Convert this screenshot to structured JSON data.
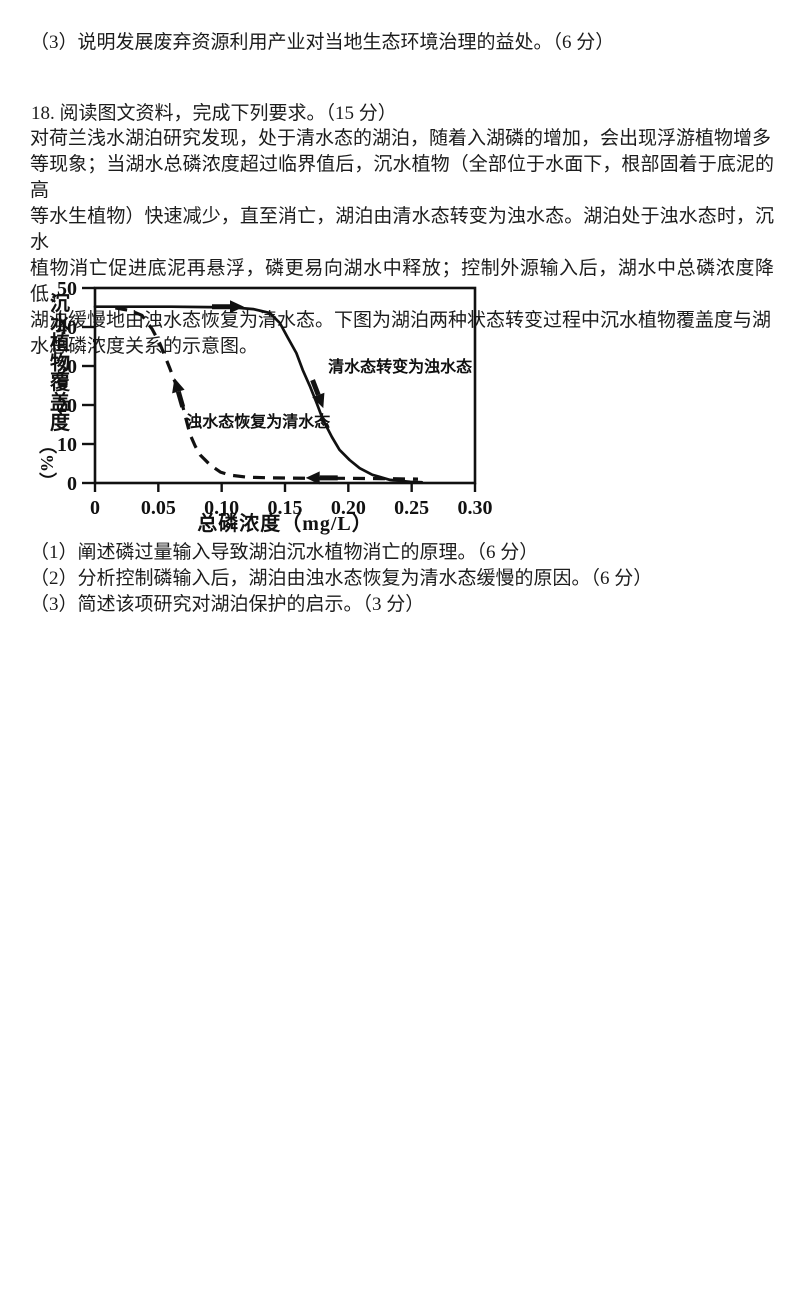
{
  "page": {
    "q17_part3": "（3）说明发展废弃资源利用产业对当地生态环境治理的益处。（6 分）",
    "q18_header": "18. 阅读图文资料，完成下列要求。（15 分）",
    "passage": "对荷兰浅水湖泊研究发现，处于清水态的湖泊，随着入湖磷的增加，会出现浮游植物增多\n等现象；当湖水总磷浓度超过临界值后，沉水植物（全部位于水面下，根部固着于底泥的高\n等水生植物）快速减少，直至消亡，湖泊由清水态转变为浊水态。湖泊处于浊水态时，沉水\n植物消亡促进底泥再悬浮，磷更易向湖水中释放；控制外源输入后，湖水中总磷浓度降低，\n湖泊缓慢地由浊水态恢复为清水态。下图为湖泊两种状态转变过程中沉水植物覆盖度与湖\n水总磷浓度关系的示意图。",
    "sub_questions": [
      "（1）阐述磷过量输入导致湖泊沉水植物消亡的原理。（6 分）",
      "（2）分析控制磷输入后，湖泊由浊水态恢复为清水态缓慢的原因。（6 分）",
      "（3）简述该项研究对湖泊保护的启示。（3 分）"
    ]
  },
  "chart_data": {
    "type": "line",
    "title": "",
    "xlabel": "总磷浓度（mg/L）",
    "ylabel": "沉水植物覆盖度（%）",
    "ylabel_stack": "沉水植物覆盖度",
    "ylabel_unit": "（%）",
    "xlim": [
      0,
      0.3
    ],
    "ylim": [
      0,
      50
    ],
    "xticks": [
      0,
      0.05,
      0.1,
      0.15,
      0.2,
      0.25,
      0.3
    ],
    "xtick_labels": [
      "0",
      "0.05",
      "0.10",
      "0.15",
      "0.20",
      "0.25",
      "0.30"
    ],
    "yticks": [
      0,
      10,
      20,
      30,
      40,
      50
    ],
    "ytick_labels": [
      "0",
      "10",
      "20",
      "30",
      "40",
      "50"
    ],
    "grid": false,
    "legend_position": "none",
    "series": [
      {
        "name": "清水态转变为浊水态",
        "style": "solid",
        "points": [
          [
            0,
            45.2
          ],
          [
            0.03,
            45.2
          ],
          [
            0.06,
            45.2
          ],
          [
            0.09,
            45.1
          ],
          [
            0.11,
            45.0
          ],
          [
            0.125,
            44.6
          ],
          [
            0.138,
            43.6
          ],
          [
            0.146,
            41.0
          ],
          [
            0.152,
            37.4
          ],
          [
            0.159,
            33.3
          ],
          [
            0.164,
            29.0
          ],
          [
            0.17,
            24.6
          ],
          [
            0.175,
            20.5
          ],
          [
            0.18,
            16.2
          ],
          [
            0.187,
            11.8
          ],
          [
            0.193,
            8.5
          ],
          [
            0.201,
            5.9
          ],
          [
            0.209,
            3.8
          ],
          [
            0.219,
            2.1
          ],
          [
            0.233,
            0.8
          ],
          [
            0.249,
            0.3
          ],
          [
            0.258,
            0.2
          ]
        ]
      },
      {
        "name": "浊水态恢复为清水态",
        "style": "dashed",
        "points": [
          [
            0.016,
            44.9
          ],
          [
            0.028,
            44.2
          ],
          [
            0.037,
            43.0
          ],
          [
            0.045,
            39.5
          ],
          [
            0.051,
            35.9
          ],
          [
            0.059,
            29.5
          ],
          [
            0.067,
            22.6
          ],
          [
            0.071,
            17.5
          ],
          [
            0.075,
            12.5
          ],
          [
            0.079,
            9.5
          ],
          [
            0.083,
            7.2
          ],
          [
            0.091,
            4.6
          ],
          [
            0.099,
            2.8
          ],
          [
            0.107,
            2.0
          ],
          [
            0.12,
            1.5
          ],
          [
            0.14,
            1.3
          ],
          [
            0.17,
            1.2
          ],
          [
            0.2,
            1.2
          ],
          [
            0.23,
            1.1
          ],
          [
            0.255,
            1.0
          ]
        ]
      }
    ],
    "curve_labels": [
      {
        "text": "清水态转变为浊水态",
        "x": 0.184,
        "y": 28.5
      },
      {
        "text": "浊水态恢复为清水态",
        "x": 0.072,
        "y": 14.3
      }
    ],
    "arrows": [
      {
        "name": "clear-to-turbid-right-arrow",
        "x": 0.105,
        "y": 45.2,
        "angle": 0,
        "len": 32
      },
      {
        "name": "clear-to-turbid-down-arrow",
        "x": 0.176,
        "y": 22.8,
        "angle": 69,
        "len": 30
      },
      {
        "name": "turbid-to-clear-up-arrow",
        "x": 0.066,
        "y": 23.2,
        "angle": -106,
        "len": 30
      },
      {
        "name": "turbid-to-clear-left-arrow",
        "x": 0.179,
        "y": 1.3,
        "angle": 180,
        "len": 32
      }
    ]
  }
}
